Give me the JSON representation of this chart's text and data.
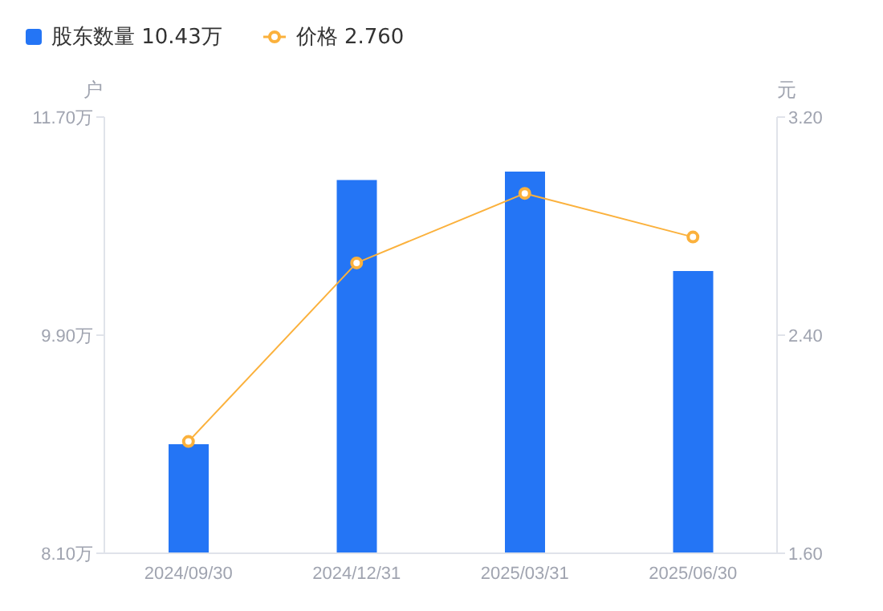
{
  "chart_data": {
    "type": "bar",
    "categories": [
      "2024/09/30",
      "2024/12/31",
      "2025/03/31",
      "2025/06/30"
    ],
    "series": [
      {
        "name": "股东数量 10.43万",
        "color": "#2475f5",
        "values": [
          9.0,
          11.18,
          11.25,
          10.43
        ]
      },
      {
        "name": "价格 2.760",
        "type": "line",
        "axis": "y2",
        "color": "#fbb13c",
        "marker": "circle",
        "values": [
          2.01,
          2.665,
          2.92,
          2.76
        ]
      }
    ],
    "ylabel": "户",
    "y2label": "元",
    "ylim": [
      8.1,
      11.7
    ],
    "yticks": [
      {
        "value": 8.1,
        "label": "8.10万"
      },
      {
        "value": 9.9,
        "label": "9.90万"
      },
      {
        "value": 11.7,
        "label": "11.70万"
      }
    ],
    "y2lim": [
      1.6,
      3.2
    ],
    "y2ticks": [
      {
        "value": 1.6,
        "label": "1.60"
      },
      {
        "value": 2.4,
        "label": "2.40"
      },
      {
        "value": 3.2,
        "label": "3.20"
      }
    ],
    "grid": false,
    "legend": "top left"
  }
}
